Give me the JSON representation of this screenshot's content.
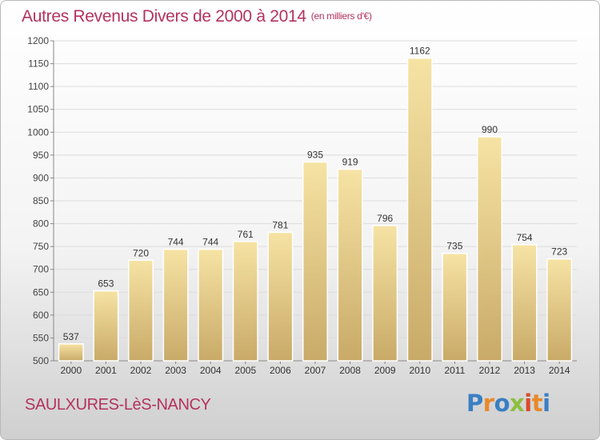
{
  "title": "Autres Revenus Divers de 2000 à 2014",
  "title_unit": "(en milliers d'€)",
  "town": "SAULXURES-LèS-NANCY",
  "logo": {
    "text": "Proxiti",
    "letters": [
      "P",
      "r",
      "o",
      "x",
      "i",
      "t",
      "i"
    ],
    "colors": [
      "#3a7fc4",
      "#e8892a",
      "#3a7fc4",
      "#8cbf3f",
      "#d94b2b",
      "#e8892a",
      "#3a7fc4"
    ]
  },
  "colors": {
    "title": "#b4325e",
    "bar_light": "#f6e3a4",
    "bar_dark": "#c9aa68"
  },
  "chart_data": {
    "type": "bar",
    "categories": [
      "2000",
      "2001",
      "2002",
      "2003",
      "2004",
      "2005",
      "2006",
      "2007",
      "2008",
      "2009",
      "2010",
      "2011",
      "2012",
      "2013",
      "2014"
    ],
    "values": [
      537,
      653,
      720,
      744,
      744,
      761,
      781,
      935,
      919,
      796,
      1162,
      735,
      990,
      754,
      723
    ],
    "ylim": [
      500,
      1200
    ],
    "yticks": [
      500,
      550,
      600,
      650,
      700,
      750,
      800,
      850,
      900,
      950,
      1000,
      1050,
      1100,
      1150,
      1200
    ],
    "grid": true,
    "data_labels": true
  }
}
